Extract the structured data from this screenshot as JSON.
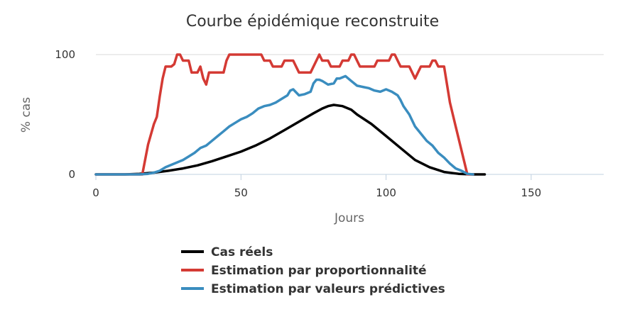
{
  "chart_data": {
    "type": "line",
    "title": "Courbe épidémique reconstruite",
    "xlabel": "Jours",
    "ylabel": "% cas",
    "xlim": [
      0,
      175
    ],
    "ylim": [
      0,
      100
    ],
    "x_ticks": [
      0,
      50,
      100,
      150
    ],
    "y_ticks": [
      0,
      100
    ],
    "grid": true,
    "legend_position": "bottom",
    "series": [
      {
        "name": "Cas réels",
        "color": "#000000",
        "points": [
          [
            0,
            0
          ],
          [
            10,
            0
          ],
          [
            15,
            0.5
          ],
          [
            20,
            1.5
          ],
          [
            25,
            3
          ],
          [
            30,
            5
          ],
          [
            35,
            7.5
          ],
          [
            40,
            11
          ],
          [
            45,
            15
          ],
          [
            50,
            19
          ],
          [
            55,
            24
          ],
          [
            60,
            30
          ],
          [
            65,
            37
          ],
          [
            70,
            44
          ],
          [
            75,
            51
          ],
          [
            78,
            55
          ],
          [
            80,
            57
          ],
          [
            82,
            58
          ],
          [
            85,
            57
          ],
          [
            88,
            54
          ],
          [
            90,
            50
          ],
          [
            95,
            42
          ],
          [
            100,
            32
          ],
          [
            105,
            22
          ],
          [
            110,
            12
          ],
          [
            115,
            6
          ],
          [
            120,
            2
          ],
          [
            125,
            0.5
          ],
          [
            130,
            0
          ],
          [
            134,
            0
          ]
        ]
      },
      {
        "name": "Estimation par proportionnalité",
        "color": "#d43a34",
        "points": [
          [
            0,
            0
          ],
          [
            15,
            0
          ],
          [
            16,
            0
          ],
          [
            18,
            25
          ],
          [
            20,
            42
          ],
          [
            21,
            48
          ],
          [
            22,
            65
          ],
          [
            23,
            80
          ],
          [
            24,
            90
          ],
          [
            26,
            90
          ],
          [
            27,
            92
          ],
          [
            28,
            100
          ],
          [
            29,
            100
          ],
          [
            30,
            95
          ],
          [
            32,
            95
          ],
          [
            33,
            85
          ],
          [
            35,
            85
          ],
          [
            36,
            90
          ],
          [
            37,
            80
          ],
          [
            38,
            75
          ],
          [
            39,
            85
          ],
          [
            42,
            85
          ],
          [
            44,
            85
          ],
          [
            45,
            95
          ],
          [
            46,
            100
          ],
          [
            55,
            100
          ],
          [
            57,
            100
          ],
          [
            58,
            95
          ],
          [
            60,
            95
          ],
          [
            61,
            90
          ],
          [
            64,
            90
          ],
          [
            65,
            95
          ],
          [
            68,
            95
          ],
          [
            70,
            85
          ],
          [
            74,
            85
          ],
          [
            75,
            90
          ],
          [
            77,
            100
          ],
          [
            78,
            95
          ],
          [
            80,
            95
          ],
          [
            81,
            90
          ],
          [
            84,
            90
          ],
          [
            85,
            95
          ],
          [
            87,
            95
          ],
          [
            88,
            100
          ],
          [
            89,
            100
          ],
          [
            90,
            95
          ],
          [
            91,
            90
          ],
          [
            96,
            90
          ],
          [
            97,
            95
          ],
          [
            101,
            95
          ],
          [
            102,
            100
          ],
          [
            103,
            100
          ],
          [
            104,
            95
          ],
          [
            105,
            90
          ],
          [
            108,
            90
          ],
          [
            109,
            85
          ],
          [
            110,
            80
          ],
          [
            111,
            85
          ],
          [
            112,
            90
          ],
          [
            115,
            90
          ],
          [
            116,
            95
          ],
          [
            117,
            95
          ],
          [
            118,
            90
          ],
          [
            120,
            90
          ],
          [
            121,
            75
          ],
          [
            122,
            60
          ],
          [
            124,
            40
          ],
          [
            126,
            20
          ],
          [
            127,
            10
          ],
          [
            128,
            0
          ],
          [
            130,
            0
          ]
        ]
      },
      {
        "name": "Estimation par valeurs prédictives",
        "color": "#3a8dbf",
        "points": [
          [
            0,
            0
          ],
          [
            15,
            0
          ],
          [
            18,
            0.5
          ],
          [
            20,
            1.5
          ],
          [
            22,
            3
          ],
          [
            24,
            6
          ],
          [
            26,
            8
          ],
          [
            28,
            10
          ],
          [
            30,
            12
          ],
          [
            32,
            15
          ],
          [
            34,
            18
          ],
          [
            36,
            22
          ],
          [
            38,
            24
          ],
          [
            40,
            28
          ],
          [
            42,
            32
          ],
          [
            44,
            36
          ],
          [
            46,
            40
          ],
          [
            48,
            43
          ],
          [
            50,
            46
          ],
          [
            52,
            48
          ],
          [
            54,
            51
          ],
          [
            56,
            55
          ],
          [
            58,
            57
          ],
          [
            60,
            58
          ],
          [
            62,
            60
          ],
          [
            64,
            63
          ],
          [
            66,
            66
          ],
          [
            67,
            70
          ],
          [
            68,
            71
          ],
          [
            70,
            66
          ],
          [
            72,
            67
          ],
          [
            74,
            69
          ],
          [
            75,
            76
          ],
          [
            76,
            79
          ],
          [
            77,
            79
          ],
          [
            78,
            78
          ],
          [
            80,
            75
          ],
          [
            82,
            76
          ],
          [
            83,
            80
          ],
          [
            84,
            80
          ],
          [
            86,
            82
          ],
          [
            87,
            80
          ],
          [
            88,
            78
          ],
          [
            90,
            74
          ],
          [
            92,
            73
          ],
          [
            94,
            72
          ],
          [
            96,
            70
          ],
          [
            98,
            69
          ],
          [
            100,
            71
          ],
          [
            102,
            69
          ],
          [
            104,
            66
          ],
          [
            105,
            62
          ],
          [
            106,
            57
          ],
          [
            108,
            50
          ],
          [
            109,
            45
          ],
          [
            110,
            40
          ],
          [
            112,
            34
          ],
          [
            114,
            28
          ],
          [
            116,
            24
          ],
          [
            118,
            18
          ],
          [
            120,
            14
          ],
          [
            122,
            9
          ],
          [
            124,
            5
          ],
          [
            126,
            3
          ],
          [
            128,
            0.5
          ],
          [
            130,
            0
          ]
        ]
      }
    ]
  }
}
